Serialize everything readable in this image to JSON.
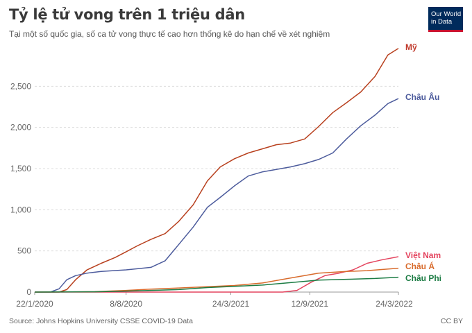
{
  "title": "Tỷ lệ tử vong trên 1 triệu dân",
  "subtitle": "Tại một số quốc gia, số ca tử vong thực tế cao hơn thống kê do hạn chế về xét nghiệm",
  "logo": {
    "line1": "Our World",
    "line2": "in Data",
    "bg_color": "#002b5c",
    "accent_color": "#c8102e"
  },
  "source": "Source: Johns Hopkins University CSSE COVID-19 Data",
  "license": "CC BY",
  "chart_data": {
    "type": "line",
    "ylim": [
      0,
      3000
    ],
    "y_ticks": [
      0,
      500,
      1000,
      1500,
      2000,
      2500
    ],
    "y_tick_labels": [
      "0",
      "500",
      "1,000",
      "1,500",
      "2,000",
      "2,500"
    ],
    "x_range": [
      "2020-01-22",
      "2022-03-24"
    ],
    "x_ticks": [
      "2020-01-22",
      "2020-08-08",
      "2021-03-24",
      "2021-09-12",
      "2022-03-24"
    ],
    "x_tick_labels": [
      "22/1/2020",
      "8/8/2020",
      "24/3/2021",
      "12/9/2021",
      "24/3/2022"
    ],
    "grid": true,
    "series": [
      {
        "name": "Mỹ",
        "color": "#b8401e",
        "label_color": "#c0392b",
        "points": [
          [
            "2020-01-22",
            0
          ],
          [
            "2020-03-15",
            0
          ],
          [
            "2020-04-01",
            30
          ],
          [
            "2020-04-20",
            150
          ],
          [
            "2020-05-15",
            270
          ],
          [
            "2020-06-15",
            350
          ],
          [
            "2020-07-15",
            420
          ],
          [
            "2020-08-08",
            490
          ],
          [
            "2020-09-01",
            560
          ],
          [
            "2020-10-01",
            640
          ],
          [
            "2020-11-01",
            710
          ],
          [
            "2020-12-01",
            860
          ],
          [
            "2021-01-01",
            1060
          ],
          [
            "2021-02-01",
            1350
          ],
          [
            "2021-03-01",
            1520
          ],
          [
            "2021-04-01",
            1620
          ],
          [
            "2021-05-01",
            1690
          ],
          [
            "2021-06-01",
            1740
          ],
          [
            "2021-07-01",
            1790
          ],
          [
            "2021-08-01",
            1810
          ],
          [
            "2021-09-01",
            1860
          ],
          [
            "2021-10-01",
            2010
          ],
          [
            "2021-11-01",
            2180
          ],
          [
            "2021-12-01",
            2300
          ],
          [
            "2022-01-01",
            2430
          ],
          [
            "2022-02-01",
            2620
          ],
          [
            "2022-03-01",
            2880
          ],
          [
            "2022-03-24",
            2960
          ]
        ]
      },
      {
        "name": "Châu Âu",
        "color": "#4c5b9c",
        "label_color": "#4c5b9c",
        "points": [
          [
            "2020-01-22",
            0
          ],
          [
            "2020-02-25",
            0
          ],
          [
            "2020-03-15",
            40
          ],
          [
            "2020-04-01",
            150
          ],
          [
            "2020-04-20",
            200
          ],
          [
            "2020-05-15",
            230
          ],
          [
            "2020-06-15",
            250
          ],
          [
            "2020-08-08",
            270
          ],
          [
            "2020-10-01",
            300
          ],
          [
            "2020-11-01",
            380
          ],
          [
            "2020-12-01",
            580
          ],
          [
            "2021-01-01",
            790
          ],
          [
            "2021-02-01",
            1030
          ],
          [
            "2021-03-01",
            1150
          ],
          [
            "2021-04-01",
            1290
          ],
          [
            "2021-05-01",
            1410
          ],
          [
            "2021-06-01",
            1460
          ],
          [
            "2021-07-01",
            1490
          ],
          [
            "2021-08-01",
            1520
          ],
          [
            "2021-09-01",
            1560
          ],
          [
            "2021-10-01",
            1610
          ],
          [
            "2021-11-01",
            1690
          ],
          [
            "2021-12-01",
            1860
          ],
          [
            "2022-01-01",
            2020
          ],
          [
            "2022-02-01",
            2150
          ],
          [
            "2022-03-01",
            2290
          ],
          [
            "2022-03-24",
            2350
          ]
        ]
      },
      {
        "name": "Việt Nam",
        "color": "#e4445e",
        "label_color": "#e4445e",
        "points": [
          [
            "2020-01-22",
            0
          ],
          [
            "2021-07-15",
            0
          ],
          [
            "2021-08-15",
            20
          ],
          [
            "2021-09-15",
            120
          ],
          [
            "2021-10-15",
            200
          ],
          [
            "2021-11-15",
            230
          ],
          [
            "2021-12-15",
            270
          ],
          [
            "2022-01-15",
            350
          ],
          [
            "2022-02-15",
            390
          ],
          [
            "2022-03-24",
            430
          ]
        ]
      },
      {
        "name": "Châu Á",
        "color": "#d86b2c",
        "label_color": "#d86b2c",
        "points": [
          [
            "2020-01-22",
            0
          ],
          [
            "2020-06-01",
            5
          ],
          [
            "2020-08-08",
            20
          ],
          [
            "2020-10-01",
            35
          ],
          [
            "2020-12-01",
            50
          ],
          [
            "2021-02-01",
            65
          ],
          [
            "2021-04-01",
            80
          ],
          [
            "2021-06-01",
            110
          ],
          [
            "2021-08-01",
            170
          ],
          [
            "2021-10-01",
            230
          ],
          [
            "2021-12-01",
            250
          ],
          [
            "2022-01-15",
            260
          ],
          [
            "2022-03-24",
            290
          ]
        ]
      },
      {
        "name": "Châu Phi",
        "color": "#1c7c44",
        "label_color": "#1c7c44",
        "points": [
          [
            "2020-01-22",
            0
          ],
          [
            "2020-06-01",
            3
          ],
          [
            "2020-08-08",
            12
          ],
          [
            "2020-10-01",
            20
          ],
          [
            "2020-12-01",
            30
          ],
          [
            "2021-02-01",
            55
          ],
          [
            "2021-04-01",
            70
          ],
          [
            "2021-06-01",
            85
          ],
          [
            "2021-08-01",
            115
          ],
          [
            "2021-10-01",
            145
          ],
          [
            "2021-12-01",
            155
          ],
          [
            "2022-02-01",
            165
          ],
          [
            "2022-03-24",
            180
          ]
        ]
      }
    ]
  }
}
